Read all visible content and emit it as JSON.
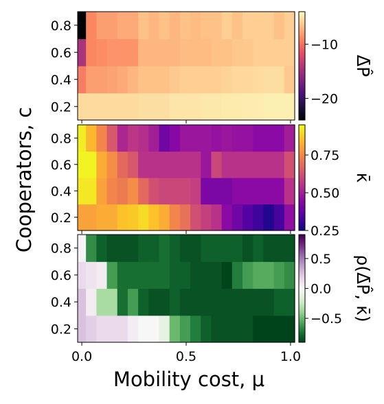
{
  "chart_data": [
    {
      "type": "heatmap",
      "colormap": "magma",
      "xlim": [
        0,
        1
      ],
      "ylim": [
        0.1,
        0.9
      ],
      "xticks": [],
      "yticks": [
        0.2,
        0.4,
        0.6,
        0.8
      ],
      "ytick_labels": [
        "0.2",
        "0.4",
        "0.6",
        "0.8"
      ],
      "x_edges": [
        -0.02,
        0.02,
        0.07,
        0.12,
        0.17,
        0.22,
        0.27,
        0.32,
        0.37,
        0.42,
        0.47,
        0.52,
        0.57,
        0.62,
        0.67,
        0.72,
        0.77,
        0.82,
        0.87,
        0.92,
        0.97,
        1.02
      ],
      "y_edges": [
        0.1,
        0.3,
        0.5,
        0.7,
        0.9
      ],
      "colorbar": {
        "label": "Δ̄P̂",
        "range": [
          -24,
          -4
        ],
        "ticks": [
          -10,
          -20
        ],
        "tick_labels": [
          "−10",
          "−20"
        ]
      },
      "values": [
        [
          -5.5,
          -5.5,
          -5.5,
          -5.5,
          -5.5,
          -5.5,
          -5.3,
          -5.3,
          -5.3,
          -5.0,
          -5.0,
          -5.0,
          -4.9,
          -4.9,
          -4.8,
          -4.8,
          -4.7,
          -4.7,
          -4.6,
          -4.6,
          -4.6
        ],
        [
          -9.5,
          -8.0,
          -8.0,
          -7.8,
          -7.5,
          -7.0,
          -6.5,
          -6.5,
          -6.5,
          -6.2,
          -6.0,
          -6.0,
          -6.0,
          -6.0,
          -5.8,
          -5.6,
          -5.6,
          -5.5,
          -5.3,
          -5.3,
          -6.2
        ],
        [
          -14.5,
          -9.0,
          -8.8,
          -8.5,
          -8.5,
          -8.5,
          -7.0,
          -7.0,
          -7.0,
          -7.0,
          -6.8,
          -6.8,
          -6.8,
          -6.5,
          -6.5,
          -6.3,
          -6.3,
          -6.0,
          -6.0,
          -6.0,
          -6.0
        ],
        [
          -24.0,
          -9.0,
          -8.0,
          -8.0,
          -7.5,
          -7.5,
          -6.5,
          -7.0,
          -6.5,
          -7.0,
          -6.5,
          -6.8,
          -6.5,
          -6.5,
          -6.0,
          -6.5,
          -6.0,
          -6.0,
          -6.0,
          -6.5,
          -6.0
        ]
      ]
    },
    {
      "type": "heatmap",
      "colormap": "plasma",
      "xlim": [
        0,
        1
      ],
      "ylim": [
        0.1,
        0.9
      ],
      "xticks": [],
      "yticks": [
        0.2,
        0.4,
        0.6,
        0.8
      ],
      "ytick_labels": [
        "0.2",
        "0.4",
        "0.6",
        "0.8"
      ],
      "x_edges": [
        -0.02,
        0.02,
        0.07,
        0.12,
        0.17,
        0.22,
        0.27,
        0.32,
        0.37,
        0.42,
        0.47,
        0.52,
        0.57,
        0.62,
        0.67,
        0.72,
        0.77,
        0.82,
        0.87,
        0.92,
        0.97,
        1.02
      ],
      "y_edges": [
        0.1,
        0.3,
        0.5,
        0.7,
        0.9
      ],
      "colorbar": {
        "label": "κ̄",
        "range": [
          0.25,
          0.95
        ],
        "ticks": [
          0.25,
          0.5,
          0.75
        ],
        "tick_labels": [
          "0.25",
          "0.50",
          "0.75"
        ]
      },
      "values": [
        [
          0.8,
          0.8,
          0.82,
          0.82,
          0.86,
          0.87,
          0.9,
          0.86,
          0.82,
          0.74,
          0.7,
          0.62,
          0.58,
          0.55,
          0.45,
          0.4,
          0.35,
          0.32,
          0.28,
          0.33,
          0.46
        ],
        [
          0.92,
          0.92,
          0.8,
          0.74,
          0.72,
          0.76,
          0.68,
          0.62,
          0.6,
          0.6,
          0.6,
          0.58,
          0.42,
          0.42,
          0.42,
          0.45,
          0.45,
          0.45,
          0.45,
          0.45,
          0.55
        ],
        [
          0.94,
          0.94,
          0.82,
          0.76,
          0.68,
          0.64,
          0.55,
          0.55,
          0.55,
          0.55,
          0.55,
          0.55,
          0.48,
          0.6,
          0.55,
          0.55,
          0.55,
          0.55,
          0.55,
          0.55,
          0.62
        ],
        [
          0.93,
          0.84,
          0.74,
          0.64,
          0.52,
          0.56,
          0.54,
          0.5,
          0.4,
          0.44,
          0.48,
          0.48,
          0.48,
          0.47,
          0.48,
          0.47,
          0.47,
          0.45,
          0.45,
          0.45,
          0.5
        ]
      ]
    },
    {
      "type": "heatmap",
      "colormap": "PRGn",
      "xlim": [
        0,
        1
      ],
      "ylim": [
        0.1,
        0.9
      ],
      "xticks": [
        0,
        0.5,
        1.0
      ],
      "xtick_labels": [
        "0.0",
        "0.5",
        "1.0"
      ],
      "yticks": [
        0.2,
        0.4,
        0.6,
        0.8
      ],
      "ytick_labels": [
        "0.2",
        "0.4",
        "0.6",
        "0.8"
      ],
      "x_edges": [
        -0.02,
        0.02,
        0.07,
        0.12,
        0.17,
        0.22,
        0.27,
        0.32,
        0.37,
        0.42,
        0.47,
        0.52,
        0.57,
        0.62,
        0.67,
        0.72,
        0.77,
        0.82,
        0.87,
        0.92,
        0.97,
        1.02
      ],
      "y_edges": [
        0.1,
        0.3,
        0.5,
        0.7,
        0.9
      ],
      "colorbar": {
        "label": "ρ(Δ̄P̂, κ̄)",
        "range": [
          -0.9,
          0.9
        ],
        "ticks": [
          0.5,
          0.0,
          -0.5
        ],
        "tick_labels": [
          "0.5",
          "0.0",
          "−0.5"
        ]
      },
      "values": [
        [
          0.25,
          0.2,
          0.15,
          0.15,
          0.15,
          0.05,
          0.0,
          0.0,
          -0.1,
          -0.5,
          -0.6,
          -0.7,
          -0.8,
          -0.85,
          -0.85,
          -0.85,
          -0.85,
          -0.9,
          -0.9,
          -0.9,
          -0.9
        ],
        [
          0.25,
          0.05,
          -0.35,
          -0.35,
          -0.75,
          -0.6,
          -0.8,
          -0.85,
          -0.85,
          -0.8,
          -0.85,
          -0.85,
          -0.85,
          -0.85,
          -0.85,
          -0.85,
          -0.85,
          -0.85,
          -0.85,
          -0.8,
          -0.8
        ],
        [
          0.15,
          0.1,
          0.05,
          -0.6,
          -0.75,
          -0.75,
          -0.75,
          -0.75,
          -0.75,
          -0.8,
          -0.8,
          -0.85,
          -0.85,
          -0.85,
          -0.9,
          -0.7,
          -0.6,
          -0.55,
          -0.55,
          -0.6,
          -0.65
        ],
        [
          0.02,
          -0.65,
          -0.8,
          -0.85,
          -0.85,
          -0.85,
          -0.8,
          -0.8,
          -0.75,
          -0.8,
          -0.85,
          -0.85,
          -0.8,
          -0.8,
          -0.8,
          -0.8,
          -0.85,
          -0.8,
          -0.85,
          -0.85,
          -0.85
        ]
      ]
    }
  ],
  "xlabel": "Mobility cost, μ",
  "ylabel": "Cooperators, c"
}
